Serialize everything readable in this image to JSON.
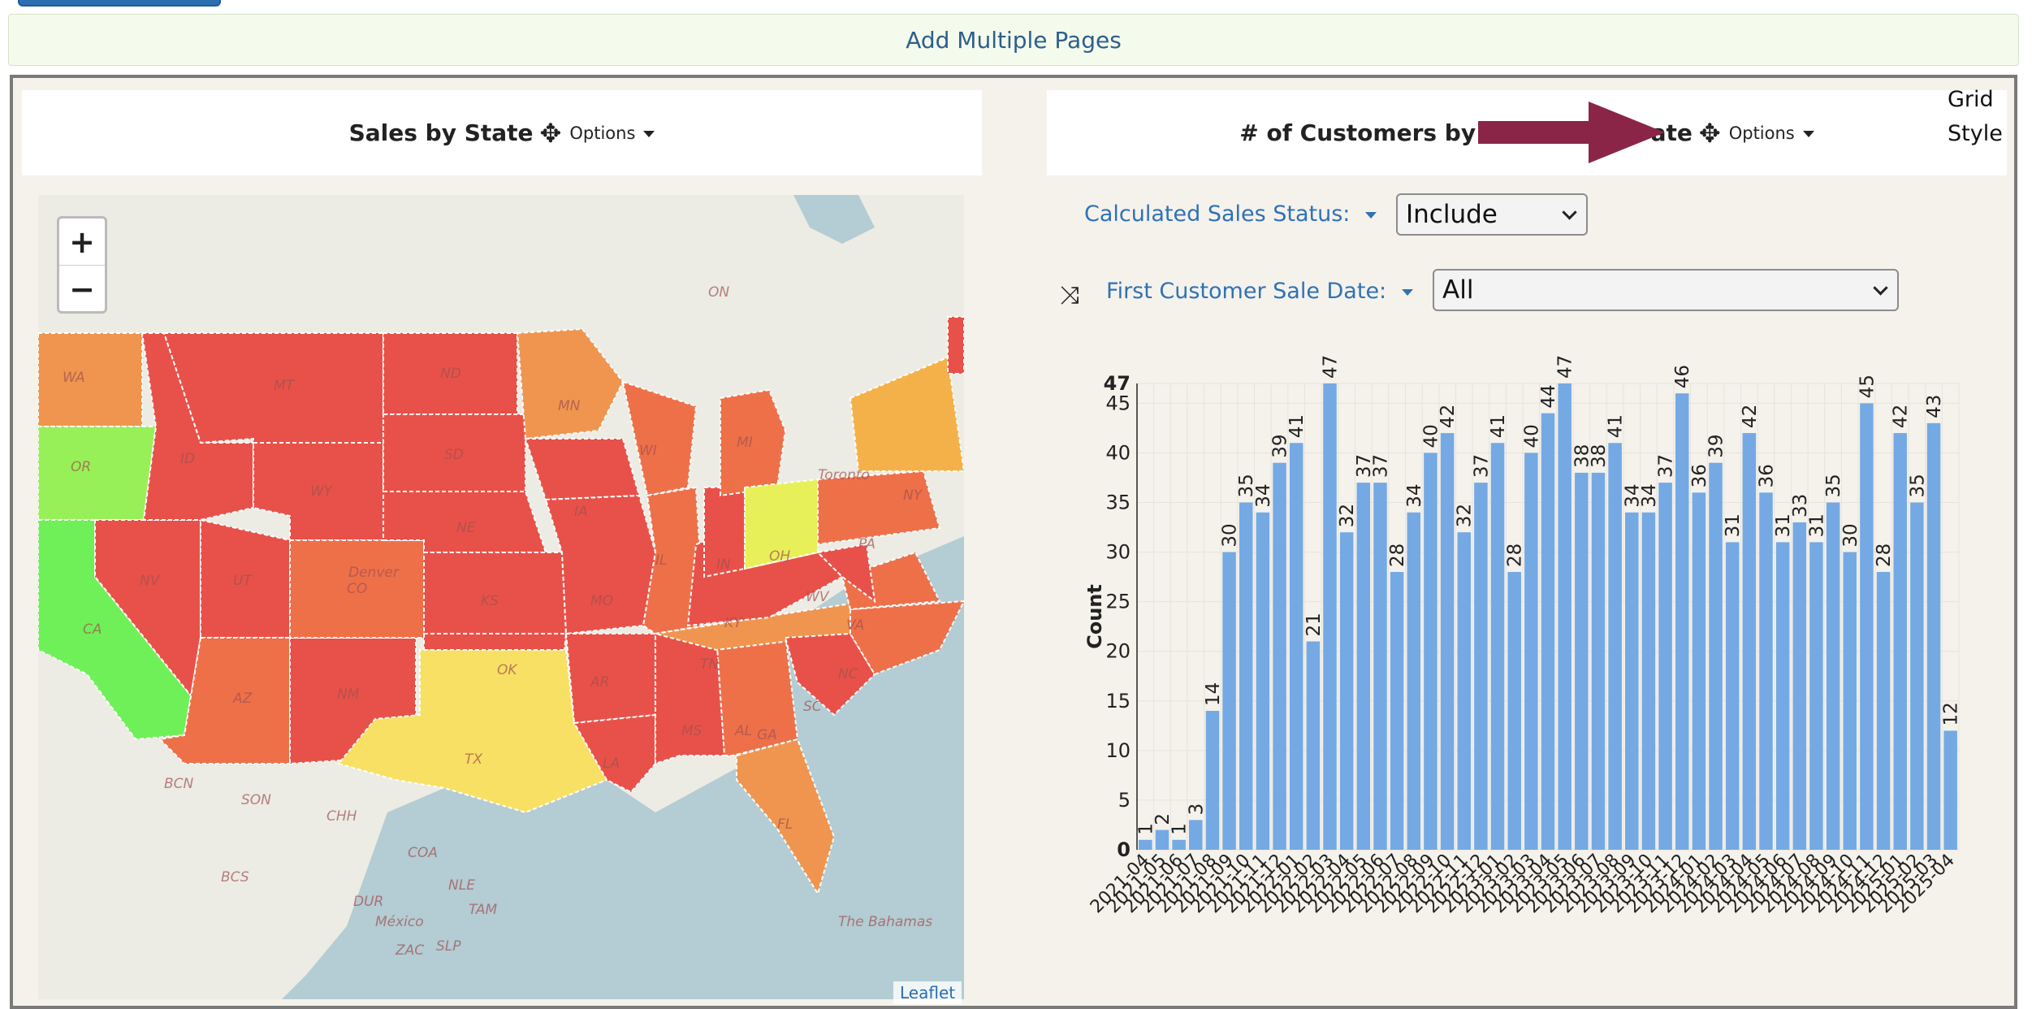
{
  "header": {
    "add_pages_label": "Add Multiple Pages"
  },
  "grid_style_label": [
    "Grid",
    "Style"
  ],
  "left_panel": {
    "title": "Sales by State",
    "options_label": "Options",
    "map": {
      "zoom_in": "+",
      "zoom_out": "−",
      "attribution": "Leaflet",
      "labels": [
        "WA",
        "OR",
        "CA",
        "NV",
        "ID",
        "MT",
        "WY",
        "UT",
        "AZ",
        "NM",
        "CO",
        "ND",
        "SD",
        "NE",
        "KS",
        "OK",
        "TX",
        "MN",
        "IA",
        "MO",
        "AR",
        "LA",
        "WI",
        "IL",
        "MS",
        "AL",
        "TN",
        "KY",
        "IN",
        "MI",
        "OH",
        "GA",
        "FL",
        "SC",
        "NC",
        "VA",
        "WV",
        "PA",
        "NY",
        "ON",
        "BCN",
        "SON",
        "CHH",
        "COA",
        "NLE",
        "DUR",
        "ZAC",
        "SLP",
        "BCS",
        "TAM",
        "México",
        "The Bahamas",
        "Toronto",
        "Denver"
      ]
    }
  },
  "right_panel": {
    "title": "# of Customers by First Order Date",
    "options_label": "Options",
    "filters": [
      {
        "label": "Calculated Sales Status:",
        "value": "Include"
      },
      {
        "label": "First Customer Sale Date:",
        "value": "All"
      }
    ]
  },
  "chart_data": {
    "type": "bar",
    "ylabel": "Count",
    "ylim": [
      0,
      47
    ],
    "yticks": [
      0,
      5,
      10,
      15,
      20,
      25,
      30,
      35,
      40,
      45,
      47
    ],
    "categories": [
      "2021-04",
      "2021-05",
      "2021-06",
      "2021-07",
      "2021-08",
      "2021-09",
      "2021-10",
      "2021-11",
      "2021-12",
      "2022-01",
      "2022-02",
      "2022-03",
      "2022-04",
      "2022-05",
      "2022-06",
      "2022-07",
      "2022-08",
      "2022-09",
      "2022-10",
      "2022-11",
      "2022-12",
      "2023-01",
      "2023-02",
      "2023-03",
      "2023-04",
      "2023-05",
      "2023-06",
      "2023-07",
      "2023-08",
      "2023-09",
      "2023-10",
      "2023-11",
      "2023-12",
      "2024-01",
      "2024-02",
      "2024-03",
      "2024-04",
      "2024-05",
      "2024-06",
      "2024-07",
      "2024-08",
      "2024-09",
      "2024-10",
      "2024-11",
      "2024-12",
      "2025-01",
      "2025-02",
      "2025-03",
      "2025-04"
    ],
    "values": [
      1,
      2,
      1,
      3,
      14,
      30,
      35,
      34,
      39,
      41,
      21,
      47,
      32,
      37,
      37,
      28,
      34,
      40,
      42,
      32,
      37,
      41,
      28,
      40,
      44,
      47,
      38,
      38,
      41,
      34,
      34,
      37,
      46,
      36,
      39,
      31,
      42,
      36,
      31,
      33,
      31,
      35,
      30,
      45,
      28,
      42,
      35,
      43,
      12
    ],
    "bar_color": "#75a9e4"
  },
  "colors": {
    "accent": "#2f72b5",
    "arrow": "#8b2547"
  }
}
